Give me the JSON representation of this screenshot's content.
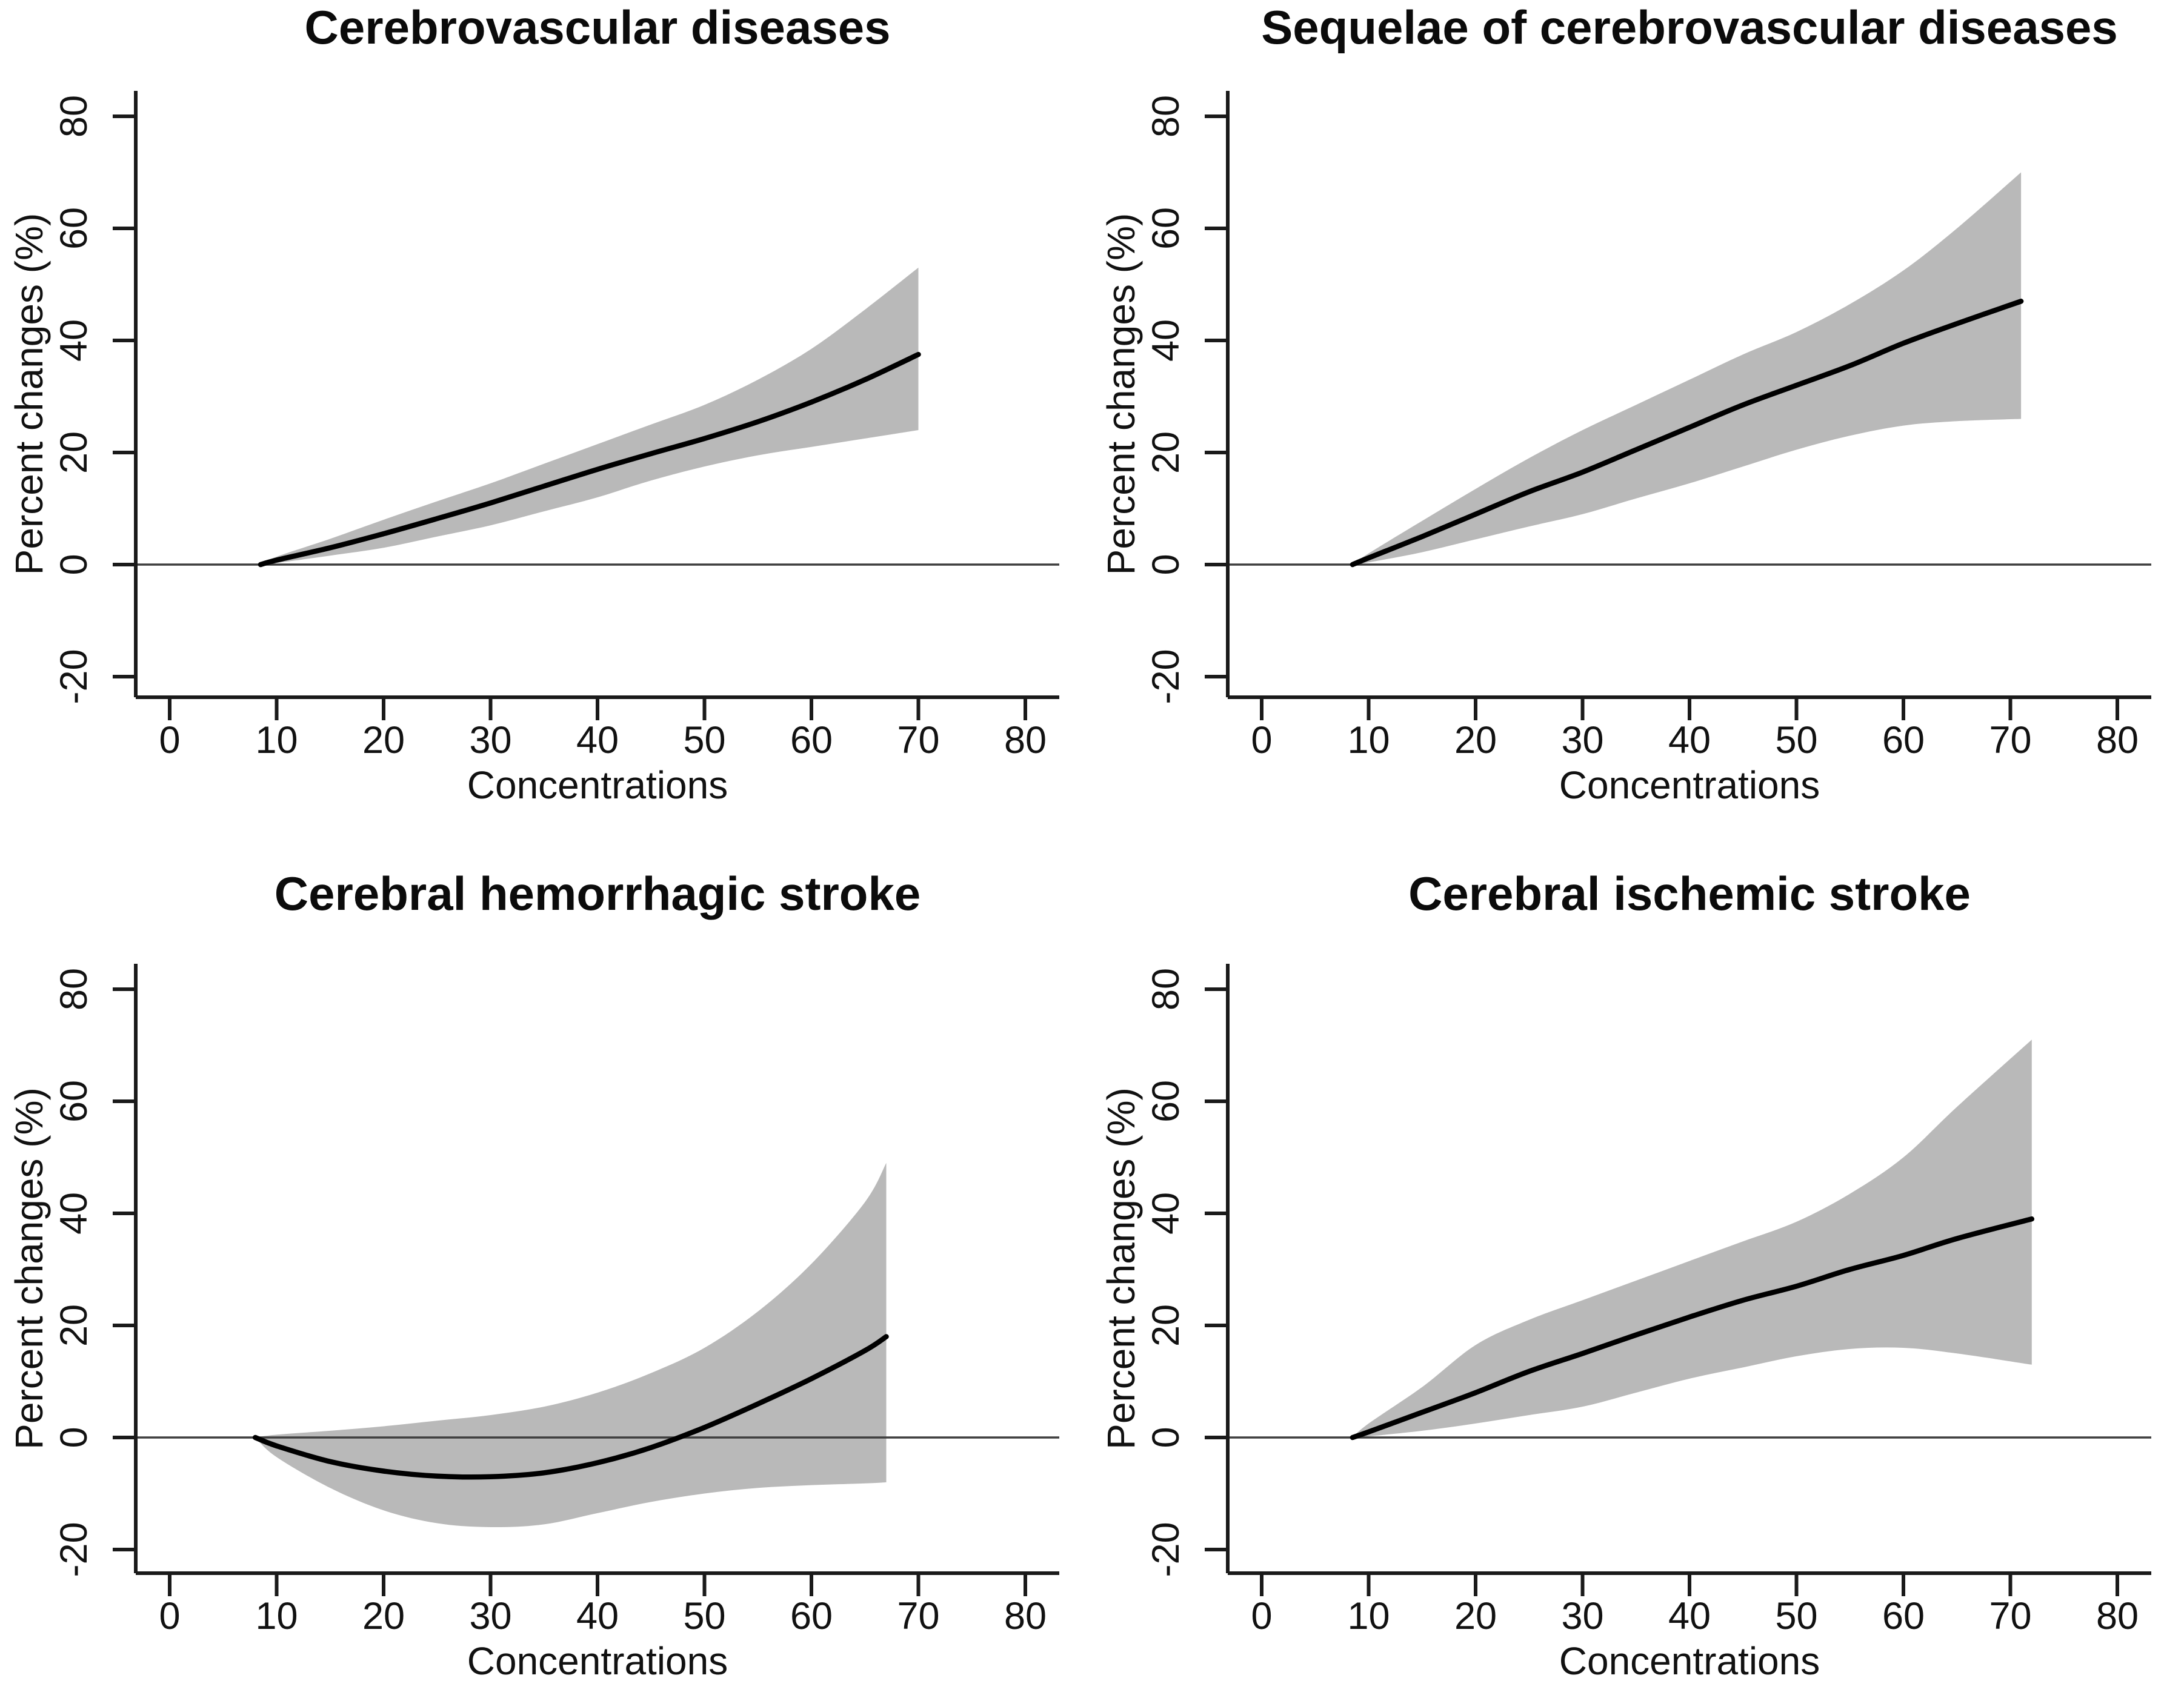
{
  "figure": {
    "background": "#ffffff",
    "band_color": "#b9b9b9",
    "curve_color": "#000000",
    "axis_color": "#1a1a1a",
    "zero_line_color": "#3d3d3d"
  },
  "chart_data": [
    {
      "type": "line",
      "title": "Cerebrovascular diseases",
      "xlabel": "Concentrations",
      "ylabel": "Percent changes (%)",
      "xticks": [
        0,
        10,
        20,
        30,
        40,
        50,
        60,
        70,
        80
      ],
      "yticks": [
        -20,
        0,
        20,
        40,
        60,
        80
      ],
      "xlim": [
        -3.2,
        83.2
      ],
      "ylim": [
        -23.7,
        84.5
      ],
      "grid": false,
      "legend": "none",
      "zero_reference_line": 0,
      "series": {
        "x": [
          8.5,
          10,
          15,
          20,
          25,
          30,
          35,
          40,
          45,
          50,
          55,
          60,
          65,
          70
        ],
        "mid": [
          0,
          0.8,
          3,
          5.5,
          8.2,
          11,
          14,
          17,
          19.8,
          22.5,
          25.5,
          29,
          33,
          37.5
        ],
        "lower": [
          0,
          0.3,
          1.6,
          3,
          5,
          7,
          9.5,
          12,
          15,
          17.5,
          19.5,
          21,
          22.5,
          24
        ],
        "upper": [
          0,
          1.4,
          4.6,
          8,
          11.3,
          14.5,
          18,
          21.5,
          25,
          28.5,
          33,
          38.5,
          45.5,
          53
        ]
      }
    },
    {
      "type": "line",
      "title": "Sequelae of cerebrovascular diseases",
      "xlabel": "Concentrations",
      "ylabel": "Percent changes (%)",
      "xticks": [
        0,
        10,
        20,
        30,
        40,
        50,
        60,
        70,
        80
      ],
      "yticks": [
        -20,
        0,
        20,
        40,
        60,
        80
      ],
      "xlim": [
        -3.2,
        83.2
      ],
      "ylim": [
        -23.7,
        84.5
      ],
      "grid": false,
      "legend": "none",
      "zero_reference_line": 0,
      "series": {
        "x": [
          8.5,
          10,
          15,
          20,
          25,
          30,
          35,
          40,
          45,
          50,
          55,
          60,
          65,
          71
        ],
        "mid": [
          0,
          1.2,
          5,
          9,
          13,
          16.5,
          20.5,
          24.5,
          28.5,
          32,
          35.5,
          39.5,
          43,
          47
        ],
        "lower": [
          0,
          0.4,
          2.2,
          4.5,
          6.8,
          9,
          11.8,
          14.5,
          17.5,
          20.5,
          23,
          24.8,
          25.6,
          26
        ],
        "upper": [
          0,
          2,
          7.8,
          13.5,
          19,
          24,
          28.5,
          33,
          37.5,
          41.5,
          46.5,
          52.5,
          60,
          70
        ]
      }
    },
    {
      "type": "line",
      "title": "Cerebral hemorrhagic stroke",
      "xlabel": "Concentrations",
      "ylabel": "Percent changes (%)",
      "xticks": [
        0,
        10,
        20,
        30,
        40,
        50,
        60,
        70,
        80
      ],
      "yticks": [
        -20,
        0,
        20,
        40,
        60,
        80
      ],
      "xlim": [
        -3.2,
        83.2
      ],
      "ylim": [
        -23.7,
        84.5
      ],
      "grid": false,
      "legend": "none",
      "zero_reference_line": 0,
      "series": {
        "x": [
          8,
          10,
          15,
          20,
          25,
          30,
          35,
          40,
          45,
          50,
          55,
          60,
          65,
          67
        ],
        "mid": [
          0,
          -1.5,
          -4.3,
          -6,
          -6.9,
          -7,
          -6.3,
          -4.5,
          -1.8,
          1.8,
          6,
          10.5,
          15.5,
          18
        ],
        "lower": [
          0,
          -3.5,
          -9,
          -13,
          -15.3,
          -16,
          -15.5,
          -13.5,
          -11.5,
          -10,
          -9,
          -8.5,
          -8.2,
          -8
        ],
        "upper": [
          0,
          0.5,
          1.2,
          2,
          3,
          4,
          5.5,
          8,
          11.5,
          16,
          22.5,
          31,
          42,
          49
        ]
      }
    },
    {
      "type": "line",
      "title": "Cerebral ischemic stroke",
      "xlabel": "Concentrations",
      "ylabel": "Percent changes (%)",
      "xticks": [
        0,
        10,
        20,
        30,
        40,
        50,
        60,
        70,
        80
      ],
      "yticks": [
        -20,
        0,
        20,
        40,
        60,
        80
      ],
      "xlim": [
        -3.2,
        83.2
      ],
      "ylim": [
        -23.7,
        84.5
      ],
      "grid": false,
      "legend": "none",
      "zero_reference_line": 0,
      "series": {
        "x": [
          8.5,
          10,
          15,
          20,
          25,
          30,
          35,
          40,
          45,
          50,
          55,
          60,
          65,
          72
        ],
        "mid": [
          0,
          1,
          4.5,
          8,
          11.8,
          15,
          18.3,
          21.5,
          24.5,
          27,
          30,
          32.5,
          35.5,
          39
        ],
        "lower": [
          0,
          0.2,
          1.2,
          2.5,
          4,
          5.5,
          8,
          10.5,
          12.5,
          14.5,
          15.8,
          16,
          15,
          13
        ],
        "upper": [
          0,
          2.5,
          9,
          16.5,
          21,
          24.5,
          28,
          31.5,
          35,
          38.5,
          43.5,
          50,
          59,
          71
        ]
      }
    }
  ]
}
